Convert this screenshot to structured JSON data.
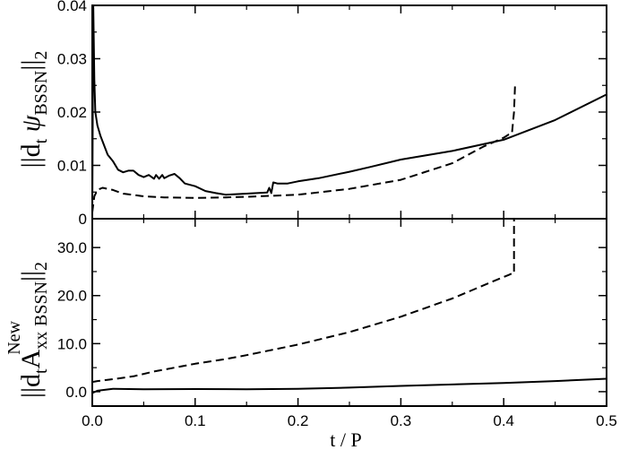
{
  "chart_data": [
    {
      "type": "line",
      "panel": "top",
      "ylabel": "||dₜ ψ_BSSN||₂",
      "ylabel_parts": {
        "main": "||d",
        "sub1": "t",
        "psi": " ψ",
        "sub2": "BSSN",
        "close": "||",
        "sub3": "2"
      },
      "xlim": [
        0.0,
        0.5
      ],
      "ylim": [
        0.0,
        0.04
      ],
      "yticks": [
        0,
        0.01,
        0.02,
        0.03,
        0.04
      ],
      "ytick_labels": [
        "0",
        "0.01",
        "0.02",
        "0.03",
        "0.04"
      ],
      "series": [
        {
          "style": "solid",
          "x": [
            0.0,
            0.001,
            0.002,
            0.003,
            0.005,
            0.008,
            0.01,
            0.015,
            0.02,
            0.025,
            0.03,
            0.035,
            0.04,
            0.045,
            0.05,
            0.055,
            0.06,
            0.062,
            0.065,
            0.068,
            0.07,
            0.075,
            0.08,
            0.085,
            0.09,
            0.1,
            0.11,
            0.12,
            0.13,
            0.15,
            0.17,
            0.172,
            0.174,
            0.176,
            0.18,
            0.19,
            0.2,
            0.22,
            0.25,
            0.27,
            0.3,
            0.35,
            0.4,
            0.45,
            0.5
          ],
          "y": [
            0.0,
            0.04,
            0.026,
            0.02,
            0.0175,
            0.0155,
            0.0145,
            0.012,
            0.0108,
            0.0092,
            0.0087,
            0.009,
            0.009,
            0.0082,
            0.0078,
            0.0082,
            0.0075,
            0.0082,
            0.0075,
            0.0082,
            0.0076,
            0.0081,
            0.0084,
            0.0076,
            0.0066,
            0.0061,
            0.0052,
            0.0048,
            0.0045,
            0.0047,
            0.0049,
            0.0058,
            0.0048,
            0.0068,
            0.0066,
            0.0066,
            0.007,
            0.0076,
            0.0088,
            0.0097,
            0.0111,
            0.0127,
            0.0148,
            0.0185,
            0.0233
          ]
        },
        {
          "style": "dashed",
          "x": [
            0.0,
            0.002,
            0.005,
            0.01,
            0.02,
            0.03,
            0.05,
            0.07,
            0.1,
            0.13,
            0.15,
            0.2,
            0.25,
            0.3,
            0.35,
            0.38,
            0.4,
            0.405,
            0.408,
            0.41,
            0.411
          ],
          "y": [
            0.0012,
            0.0042,
            0.0054,
            0.0058,
            0.0054,
            0.0047,
            0.0042,
            0.004,
            0.0039,
            0.004,
            0.0041,
            0.0045,
            0.0056,
            0.0073,
            0.0104,
            0.0135,
            0.0152,
            0.0158,
            0.016,
            0.02,
            0.0248
          ]
        }
      ]
    },
    {
      "type": "line",
      "panel": "bottom",
      "ylabel": "||dₜ A_xx^New_BSSN||₂",
      "ylabel_parts": {
        "main": "||d",
        "sub1": "t",
        "A": "A",
        "sub2": "xx",
        "sup": "New",
        "close": "||",
        "sub3": "BSSN",
        "sub4": "2"
      },
      "xlabel": "t / P",
      "xlim": [
        0.0,
        0.5
      ],
      "ylim": [
        -3.0,
        36.0
      ],
      "yticks": [
        0,
        10,
        20,
        30
      ],
      "ytick_labels": [
        "0.0",
        "10.0",
        "20.0",
        "30.0"
      ],
      "xticks": [
        0.0,
        0.1,
        0.2,
        0.3,
        0.4,
        0.5
      ],
      "xtick_labels": [
        "0.0",
        "0.1",
        "0.2",
        "0.3",
        "0.4",
        "0.5"
      ],
      "series": [
        {
          "style": "solid",
          "x": [
            0.0,
            0.005,
            0.02,
            0.05,
            0.1,
            0.15,
            0.2,
            0.25,
            0.3,
            0.35,
            0.4,
            0.45,
            0.5
          ],
          "y": [
            -0.3,
            0.2,
            0.6,
            0.5,
            0.55,
            0.5,
            0.6,
            0.85,
            1.2,
            1.5,
            1.8,
            2.2,
            2.7
          ]
        },
        {
          "style": "dashed",
          "x": [
            0.0,
            0.005,
            0.02,
            0.04,
            0.06,
            0.07,
            0.1,
            0.13,
            0.15,
            0.2,
            0.25,
            0.3,
            0.35,
            0.39,
            0.405,
            0.408,
            0.41,
            0.41
          ],
          "y": [
            2.0,
            2.2,
            2.6,
            3.2,
            4.2,
            4.6,
            5.8,
            6.8,
            7.6,
            9.8,
            12.4,
            15.6,
            19.4,
            23.0,
            24.3,
            24.6,
            24.6,
            36.0
          ]
        }
      ]
    }
  ]
}
